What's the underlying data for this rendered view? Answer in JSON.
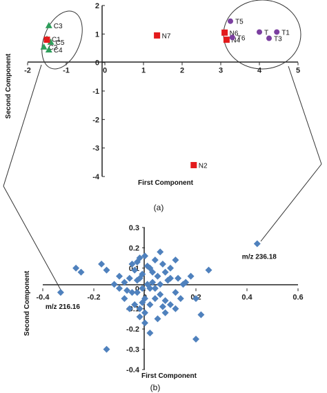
{
  "chart_data": [
    {
      "type": "scatter",
      "panel_label": "(a)",
      "xlabel": "First Component",
      "ylabel": "Second Component",
      "xlim": [
        -2,
        5
      ],
      "ylim": [
        -4,
        2
      ],
      "xticks": [
        "-2",
        "-1",
        "0",
        "1",
        "2",
        "3",
        "4",
        "5"
      ],
      "yticks": [
        "2",
        "1",
        "0",
        "-1",
        "-2",
        "-3",
        "-4"
      ],
      "grid": false,
      "series": [
        {
          "group": "C",
          "marker": "triangle",
          "color": "#2e9e5b",
          "points": [
            {
              "label": "C3",
              "x": -1.45,
              "y": 1.3
            },
            {
              "label": "C1",
              "x": -1.5,
              "y": 0.83
            },
            {
              "label": "C5",
              "x": -1.4,
              "y": 0.72
            },
            {
              "label": "C2",
              "x": -1.58,
              "y": 0.55
            },
            {
              "label": "C4",
              "x": -1.45,
              "y": 0.45
            }
          ]
        },
        {
          "group": "N",
          "marker": "square",
          "color": "#e31a1c",
          "points": [
            {
              "label": "N7",
              "x": 1.35,
              "y": 0.95
            },
            {
              "label": "N6",
              "x": 3.1,
              "y": 1.05
            },
            {
              "label": "N4",
              "x": 3.15,
              "y": 0.8
            },
            {
              "label": "N2",
              "x": 2.3,
              "y": -3.6
            },
            {
              "label": "",
              "x": -1.5,
              "y": 0.8
            }
          ]
        },
        {
          "group": "T",
          "marker": "circle",
          "color": "#7b3fa0",
          "points": [
            {
              "label": "T5",
              "x": 3.25,
              "y": 1.45
            },
            {
              "label": "T6",
              "x": 3.3,
              "y": 0.88
            },
            {
              "label": "T",
              "x": 4.0,
              "y": 1.07
            },
            {
              "label": "T1",
              "x": 4.45,
              "y": 1.07
            },
            {
              "label": "T3",
              "x": 4.25,
              "y": 0.85
            }
          ]
        }
      ]
    },
    {
      "type": "scatter",
      "panel_label": "(b)",
      "xlabel": "First Component",
      "ylabel": "Second Component",
      "xlim": [
        -0.4,
        0.6
      ],
      "ylim": [
        -0.4,
        0.3
      ],
      "xticks": [
        "-0.4",
        "-0.2",
        "0",
        "0.2",
        "0.4",
        "0.6"
      ],
      "yticks": [
        "0.3",
        "0.2",
        "0.1",
        "0",
        "-0.1",
        "-0.2",
        "-0.3",
        "-0.4"
      ],
      "grid": false,
      "annotations": [
        {
          "text": "m/z 236.18",
          "x": 0.44,
          "y": 0.22
        },
        {
          "text": "m/z 216.16",
          "x": -0.33,
          "y": -0.02
        }
      ],
      "series": [
        {
          "marker": "diamond",
          "color": "#4f81bd",
          "points": [
            [
              0.44,
              0.22
            ],
            [
              -0.33,
              -0.02
            ],
            [
              -0.27,
              0.1
            ],
            [
              -0.25,
              0.08
            ],
            [
              -0.17,
              0.12
            ],
            [
              -0.15,
              0.09
            ],
            [
              -0.12,
              0.02
            ],
            [
              -0.1,
              0.0
            ],
            [
              -0.08,
              0.03
            ],
            [
              -0.05,
              -0.02
            ],
            [
              -0.05,
              0.12
            ],
            [
              -0.02,
              0.05
            ],
            [
              -0.03,
              0.13
            ],
            [
              -0.02,
              0.15
            ],
            [
              0.0,
              0.16
            ],
            [
              0.02,
              0.1
            ],
            [
              0.04,
              0.14
            ],
            [
              0.06,
              0.18
            ],
            [
              0.07,
              0.12
            ],
            [
              0.08,
              0.08
            ],
            [
              0.1,
              0.1
            ],
            [
              0.12,
              0.14
            ],
            [
              0.1,
              0.05
            ],
            [
              0.05,
              0.06
            ],
            [
              0.03,
              0.03
            ],
            [
              0.01,
              0.02
            ],
            [
              -0.01,
              0.0
            ],
            [
              -0.03,
              0.04
            ],
            [
              -0.06,
              0.05
            ],
            [
              -0.08,
              -0.05
            ],
            [
              -0.04,
              -0.08
            ],
            [
              -0.02,
              -0.1
            ],
            [
              0.0,
              -0.12
            ],
            [
              0.02,
              -0.08
            ],
            [
              0.04,
              -0.05
            ],
            [
              0.06,
              -0.03
            ],
            [
              0.08,
              -0.06
            ],
            [
              0.1,
              -0.08
            ],
            [
              0.12,
              -0.02
            ],
            [
              0.15,
              0.02
            ],
            [
              0.18,
              0.06
            ],
            [
              0.2,
              -0.05
            ],
            [
              0.25,
              0.09
            ],
            [
              0.22,
              -0.13
            ],
            [
              0.2,
              -0.25
            ],
            [
              0.02,
              -0.22
            ],
            [
              -0.15,
              -0.3
            ],
            [
              0.0,
              -0.17
            ],
            [
              -0.02,
              -0.14
            ],
            [
              0.05,
              -0.15
            ],
            [
              0.08,
              -0.12
            ],
            [
              0.12,
              -0.1
            ],
            [
              0.0,
              -0.05
            ],
            [
              0.02,
              0.0
            ],
            [
              -0.01,
              0.07
            ],
            [
              0.04,
              0.0
            ],
            [
              -0.03,
              -0.02
            ],
            [
              0.06,
              0.02
            ],
            [
              -0.07,
              -0.01
            ],
            [
              0.09,
              0.04
            ],
            [
              -0.1,
              0.06
            ],
            [
              0.13,
              0.05
            ],
            [
              0.14,
              -0.05
            ],
            [
              -0.06,
              -0.1
            ],
            [
              0.03,
              0.08
            ],
            [
              0.07,
              -0.09
            ],
            [
              -0.01,
              -0.07
            ],
            [
              0.01,
              0.11
            ],
            [
              0.16,
              0.03
            ],
            [
              -0.04,
              0.09
            ]
          ]
        }
      ]
    }
  ]
}
